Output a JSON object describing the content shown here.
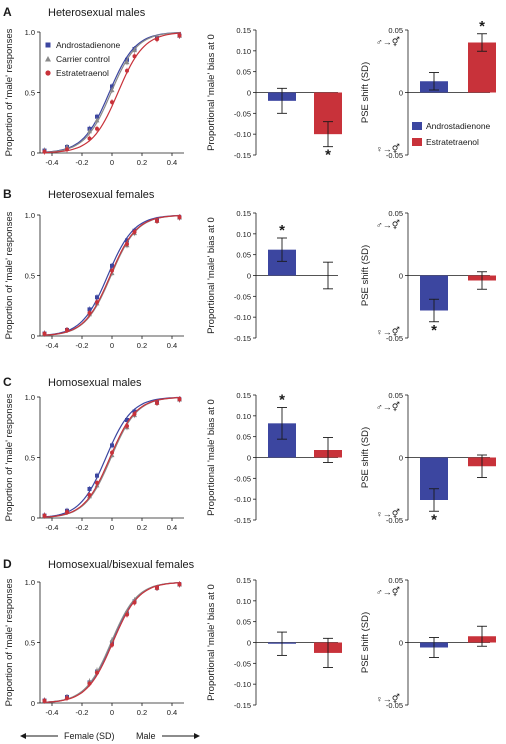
{
  "colors": {
    "androstadienone": "#3c46a0",
    "estratetraenol": "#c8323a",
    "carrier": "#8a8a8a",
    "axis": "#1a1a1a"
  },
  "footer": {
    "left": "Female",
    "middle": "(SD)",
    "right": "Male"
  },
  "axes": {
    "curve": {
      "ylabel": "Proportion of 'male' responses",
      "xticks": [
        "-0.4",
        "-0.2",
        "0",
        "0.2",
        "0.4"
      ],
      "yticks": [
        "0",
        "0.5",
        "1.0"
      ],
      "xlim": [
        -0.48,
        0.48
      ],
      "ylim": [
        0,
        1
      ]
    },
    "bias": {
      "ylabel": "Proportional 'male' bias at 0",
      "yticks": [
        "0.15",
        "0.10",
        "0.05",
        "0",
        "-0.05",
        "-0.10",
        "-0.15"
      ],
      "ylim": [
        -0.15,
        0.15
      ]
    },
    "pse": {
      "ylabel": "PSE shift (SD)",
      "yticks": [
        "0.05",
        "0",
        "-0.05"
      ],
      "ylim": [
        -0.05,
        0.05
      ],
      "top_marker": "♂→⚥",
      "bottom_marker": "♀→⚥"
    }
  },
  "legend_curve": [
    "Androstadienone",
    "Carrier control",
    "Estratetraenol"
  ],
  "legend_bars": [
    "Androstadienone",
    "Estratetraenol"
  ],
  "chart_data": [
    {
      "panel": "A",
      "title": "Heterosexual males",
      "curve": {
        "type": "line",
        "x": [
          -0.45,
          -0.3,
          -0.15,
          -0.1,
          0,
          0.1,
          0.15,
          0.3,
          0.45
        ],
        "series": [
          {
            "name": "Androstadienone",
            "pse": -0.018,
            "slope": 11.5,
            "values": [
              0.02,
              0.05,
              0.2,
              0.3,
              0.55,
              0.77,
              0.86,
              0.95,
              0.97
            ]
          },
          {
            "name": "Carrier control",
            "pse": -0.006,
            "slope": 11.5,
            "values": [
              0.02,
              0.05,
              0.18,
              0.27,
              0.52,
              0.75,
              0.85,
              0.95,
              0.97
            ]
          },
          {
            "name": "Estratetraenol",
            "pse": 0.04,
            "slope": 11.5,
            "values": [
              0.01,
              0.03,
              0.12,
              0.2,
              0.42,
              0.68,
              0.8,
              0.94,
              0.97
            ]
          }
        ]
      },
      "bias": {
        "type": "bar",
        "categories": [
          "Androstadienone",
          "Estratetraenol"
        ],
        "values": [
          -0.02,
          -0.1
        ],
        "errors": [
          0.03,
          0.03
        ],
        "significant": [
          false,
          true
        ]
      },
      "pse": {
        "type": "bar",
        "categories": [
          "Androstadienone",
          "Estratetraenol"
        ],
        "values": [
          0.009,
          0.04
        ],
        "errors": [
          0.007,
          0.007
        ],
        "significant": [
          false,
          true
        ]
      }
    },
    {
      "panel": "B",
      "title": "Heterosexual females",
      "curve": {
        "type": "line",
        "x": [
          -0.45,
          -0.3,
          -0.15,
          -0.1,
          0,
          0.1,
          0.15,
          0.3,
          0.45
        ],
        "series": [
          {
            "name": "Androstadienone",
            "pse": -0.028,
            "slope": 11.5,
            "values": [
              0.02,
              0.05,
              0.22,
              0.32,
              0.58,
              0.79,
              0.87,
              0.96,
              0.98
            ]
          },
          {
            "name": "Carrier control",
            "pse": -0.006,
            "slope": 11.5,
            "values": [
              0.02,
              0.05,
              0.18,
              0.27,
              0.52,
              0.75,
              0.85,
              0.95,
              0.98
            ]
          },
          {
            "name": "Estratetraenol",
            "pse": -0.011,
            "slope": 11.5,
            "values": [
              0.02,
              0.05,
              0.19,
              0.28,
              0.54,
              0.76,
              0.86,
              0.95,
              0.98
            ]
          }
        ]
      },
      "bias": {
        "type": "bar",
        "categories": [
          "Androstadienone",
          "Estratetraenol"
        ],
        "values": [
          0.062,
          0.0
        ],
        "errors": [
          0.028,
          0.032
        ],
        "significant": [
          true,
          false
        ]
      },
      "pse": {
        "type": "bar",
        "categories": [
          "Androstadienone",
          "Estratetraenol"
        ],
        "values": [
          -0.028,
          -0.004
        ],
        "errors": [
          0.009,
          0.007
        ],
        "significant": [
          true,
          false
        ]
      }
    },
    {
      "panel": "C",
      "title": "Homosexual males",
      "curve": {
        "type": "line",
        "x": [
          -0.45,
          -0.3,
          -0.15,
          -0.1,
          0,
          0.1,
          0.15,
          0.3,
          0.45
        ],
        "series": [
          {
            "name": "Androstadienone",
            "pse": -0.04,
            "slope": 11.5,
            "values": [
              0.02,
              0.06,
              0.24,
              0.35,
              0.6,
              0.81,
              0.88,
              0.96,
              0.98
            ]
          },
          {
            "name": "Carrier control",
            "pse": -0.006,
            "slope": 11.5,
            "values": [
              0.02,
              0.05,
              0.18,
              0.27,
              0.52,
              0.75,
              0.85,
              0.95,
              0.98
            ]
          },
          {
            "name": "Estratetraenol",
            "pse": -0.013,
            "slope": 11.5,
            "values": [
              0.02,
              0.05,
              0.19,
              0.29,
              0.54,
              0.76,
              0.86,
              0.95,
              0.98
            ]
          }
        ]
      },
      "bias": {
        "type": "bar",
        "categories": [
          "Androstadienone",
          "Estratetraenol"
        ],
        "values": [
          0.082,
          0.018
        ],
        "errors": [
          0.038,
          0.03
        ],
        "significant": [
          true,
          false
        ]
      },
      "pse": {
        "type": "bar",
        "categories": [
          "Androstadienone",
          "Estratetraenol"
        ],
        "values": [
          -0.034,
          -0.007
        ],
        "errors": [
          0.009,
          0.009
        ],
        "significant": [
          true,
          false
        ]
      }
    },
    {
      "panel": "D",
      "title": "Homosexual/bisexual females",
      "curve": {
        "type": "line",
        "x": [
          -0.45,
          -0.3,
          -0.15,
          -0.1,
          0,
          0.1,
          0.15,
          0.3,
          0.45
        ],
        "series": [
          {
            "name": "Androstadienone",
            "pse": -0.003,
            "slope": 11.5,
            "values": [
              0.02,
              0.05,
              0.17,
              0.26,
              0.5,
              0.74,
              0.84,
              0.95,
              0.98
            ]
          },
          {
            "name": "Carrier control",
            "pse": -0.006,
            "slope": 11.5,
            "values": [
              0.02,
              0.05,
              0.18,
              0.27,
              0.52,
              0.75,
              0.85,
              0.95,
              0.98
            ]
          },
          {
            "name": "Estratetraenol",
            "pse": 0.005,
            "slope": 11.5,
            "values": [
              0.02,
              0.04,
              0.16,
              0.25,
              0.48,
              0.73,
              0.83,
              0.95,
              0.98
            ]
          }
        ]
      },
      "bias": {
        "type": "bar",
        "categories": [
          "Androstadienone",
          "Estratetraenol"
        ],
        "values": [
          -0.003,
          -0.025
        ],
        "errors": [
          0.028,
          0.035
        ],
        "significant": [
          false,
          false
        ]
      },
      "pse": {
        "type": "bar",
        "categories": [
          "Androstadienone",
          "Estratetraenol"
        ],
        "values": [
          -0.004,
          0.005
        ],
        "errors": [
          0.008,
          0.008
        ],
        "significant": [
          false,
          false
        ]
      }
    }
  ]
}
